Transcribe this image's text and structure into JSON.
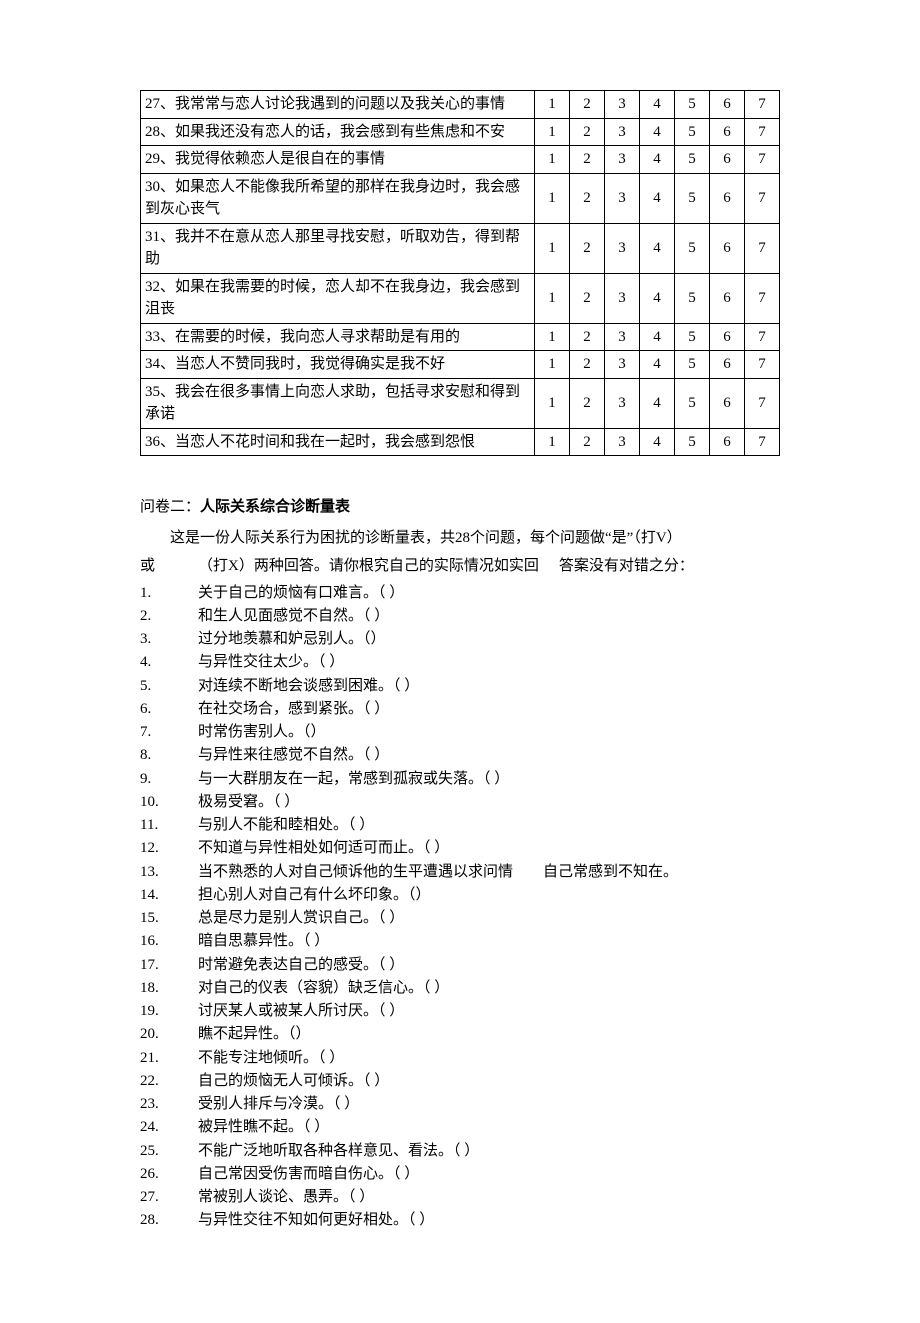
{
  "rating_scale": [
    1,
    2,
    3,
    4,
    5,
    6,
    7
  ],
  "rating_rows": [
    {
      "text": "27、我常常与恋人讨论我遇到的问题以及我关心的事情",
      "tall": false
    },
    {
      "text": "28、如果我还没有恋人的话，我会感到有些焦虑和不安",
      "tall": false
    },
    {
      "text": "29、我觉得依赖恋人是很自在的事情",
      "tall": false
    },
    {
      "text": "30、如果恋人不能像我所希望的那样在我身边时，我会感到灰心丧气",
      "tall": true
    },
    {
      "text": "31、我并不在意从恋人那里寻找安慰，听取劝告，得到帮助",
      "tall": false
    },
    {
      "text": "32、如果在我需要的时候，恋人却不在我身边，我会感到沮丧",
      "tall": true
    },
    {
      "text": "33、在需要的时候，我向恋人寻求帮助是有用的",
      "tall": false
    },
    {
      "text": "34、当恋人不赞同我时，我觉得确实是我不好",
      "tall": false
    },
    {
      "text": "35、我会在很多事情上向恋人求助，包括寻求安慰和得到承诺",
      "tall": true
    },
    {
      "text": "36、当恋人不花时间和我在一起时，我会感到怨恨",
      "tall": false
    }
  ],
  "section2": {
    "heading_prefix": "问卷二：",
    "heading_bold": "人际关系综合诊断量表",
    "intro_line1": "这是一份人际关系行为困扰的诊断量表，共28个问题，每个问题做“是”（打V）",
    "intro_line2_left": "或",
    "intro_line2_mid": "（打X）两种回答。请你根究自己的实际情况如实回",
    "intro_line2_right": "答案没有对错之分：",
    "items": [
      "关于自己的烦恼有口难言。（ ）",
      "和生人见面感觉不自然。（ ）",
      "过分地羡慕和妒忌别人。（）",
      "与异性交往太少。（ ）",
      "对连续不断地会谈感到困难。（ ）",
      "在社交场合，感到紧张。（ ）",
      "时常伤害别人。（）",
      "与异性来往感觉不自然。（ ）",
      "与一大群朋友在一起，常感到孤寂或失落。（ ）",
      "极易受窘。（ ）",
      "与别人不能和睦相处。（ ）",
      "不知道与异性相处如何适可而止。（ ）",
      "当不熟悉的人对自己倾诉他的生平遭遇以求问情　　自己常感到不知在。",
      "担心别人对自己有什么坏印象。（）",
      "总是尽力是别人赏识自己。（ ）",
      "暗自思慕异性。（ ）",
      "时常避免表达自己的感受。（ ）",
      "对自己的仪表（容貌）缺乏信心。（ ）",
      "讨厌某人或被某人所讨厌。（ ）",
      "瞧不起异性。（）",
      "不能专注地倾听。（ ）",
      "自己的烦恼无人可倾诉。（ ）",
      "受别人排斥与冷漠。（ ）",
      "被异性瞧不起。（ ）",
      "不能广泛地听取各种各样意见、看法。（ ）",
      "自己常因受伤害而暗自伤心。（ ）",
      "常被别人谈论、愚弄。（ ）",
      "与异性交往不知如何更好相处。（ ）"
    ]
  }
}
